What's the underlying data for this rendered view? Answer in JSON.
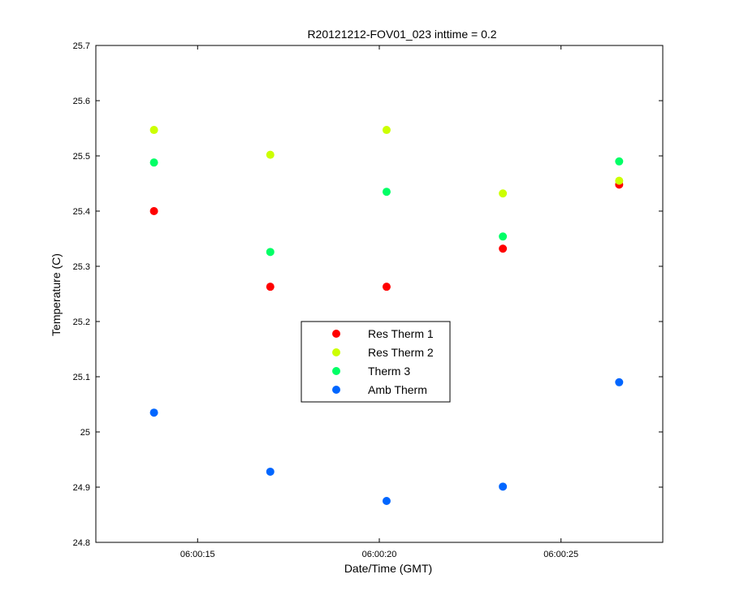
{
  "chart_data": {
    "type": "scatter",
    "title": "R20121212-FOV01_023 inttime = 0.2",
    "xlabel": "Date/Time (GMT)",
    "ylabel": "Temperature (C)",
    "xlim": [
      "06:00:12.2",
      "06:00:27.8"
    ],
    "ylim": [
      24.8,
      25.7
    ],
    "x_ticks": [
      "06:00:15",
      "06:00:20",
      "06:00:25"
    ],
    "y_ticks": [
      "24.8",
      "24.9",
      "25",
      "25.1",
      "25.2",
      "25.3",
      "25.4",
      "25.5",
      "25.6",
      "25.7"
    ],
    "x": [
      "06:00:13.8",
      "06:00:17.0",
      "06:00:20.2",
      "06:00:23.4",
      "06:00:26.6"
    ],
    "series": [
      {
        "name": "Res Therm 1",
        "color": "#ff0000",
        "values": [
          25.4,
          25.263,
          25.263,
          25.332,
          25.448
        ]
      },
      {
        "name": "Res Therm 2",
        "color": "#ccff00",
        "values": [
          25.547,
          25.502,
          25.547,
          25.432,
          25.455
        ]
      },
      {
        "name": "Therm 3",
        "color": "#00ff66",
        "values": [
          25.488,
          25.326,
          25.435,
          25.354,
          25.49
        ]
      },
      {
        "name": "Amb Therm",
        "color": "#0066ff",
        "values": [
          25.035,
          24.928,
          24.875,
          24.901,
          25.09
        ]
      }
    ],
    "legend_position": "center",
    "grid": false
  }
}
